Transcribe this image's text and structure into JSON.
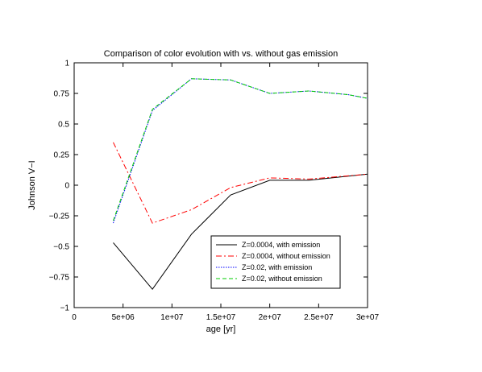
{
  "chart_data": {
    "type": "line",
    "title": "Comparison of color evolution with vs. without gas emission",
    "xlabel": "age [yr]",
    "ylabel": "Johnson V−I",
    "xlim": [
      0,
      30000000
    ],
    "ylim": [
      -1,
      1
    ],
    "xticks": [
      0,
      5000000,
      10000000,
      15000000,
      20000000,
      25000000,
      30000000
    ],
    "xtick_labels": [
      "0",
      "5e+06",
      "1e+07",
      "1.5e+07",
      "2e+07",
      "2.5e+07",
      "3e+07"
    ],
    "yticks": [
      -1,
      -0.75,
      -0.5,
      -0.25,
      0,
      0.25,
      0.5,
      0.75,
      1
    ],
    "ytick_labels": [
      "−1",
      "−0.75",
      "−0.5",
      "−0.25",
      "0",
      "0.25",
      "0.5",
      "0.75",
      "1"
    ],
    "grid": false,
    "legend_position": "bottom-right",
    "series": [
      {
        "name": "Z=0.0004, with emission",
        "color": "#000000",
        "dash": "solid",
        "x": [
          4000000,
          8000000,
          12000000,
          16000000,
          20000000,
          24000000,
          30000000
        ],
        "y": [
          -0.47,
          -0.85,
          -0.4,
          -0.08,
          0.04,
          0.04,
          0.09
        ]
      },
      {
        "name": "Z=0.0004, without emission",
        "color": "#ff0000",
        "dash": "dashdot",
        "x": [
          4000000,
          8000000,
          12000000,
          16000000,
          20000000,
          24000000,
          30000000
        ],
        "y": [
          0.35,
          -0.31,
          -0.2,
          -0.02,
          0.06,
          0.05,
          0.09
        ]
      },
      {
        "name": "Z=0.02, with emission",
        "color": "#0000ff",
        "dash": "dotted",
        "x": [
          4000000,
          8000000,
          12000000,
          16000000,
          20000000,
          24000000,
          28000000,
          30000000
        ],
        "y": [
          -0.31,
          0.61,
          0.87,
          0.86,
          0.75,
          0.77,
          0.74,
          0.71
        ]
      },
      {
        "name": "Z=0.02, without emission",
        "color": "#00cc00",
        "dash": "dashed",
        "x": [
          4000000,
          8000000,
          12000000,
          16000000,
          20000000,
          24000000,
          28000000,
          30000000
        ],
        "y": [
          -0.29,
          0.62,
          0.87,
          0.86,
          0.75,
          0.77,
          0.74,
          0.71
        ]
      }
    ]
  }
}
